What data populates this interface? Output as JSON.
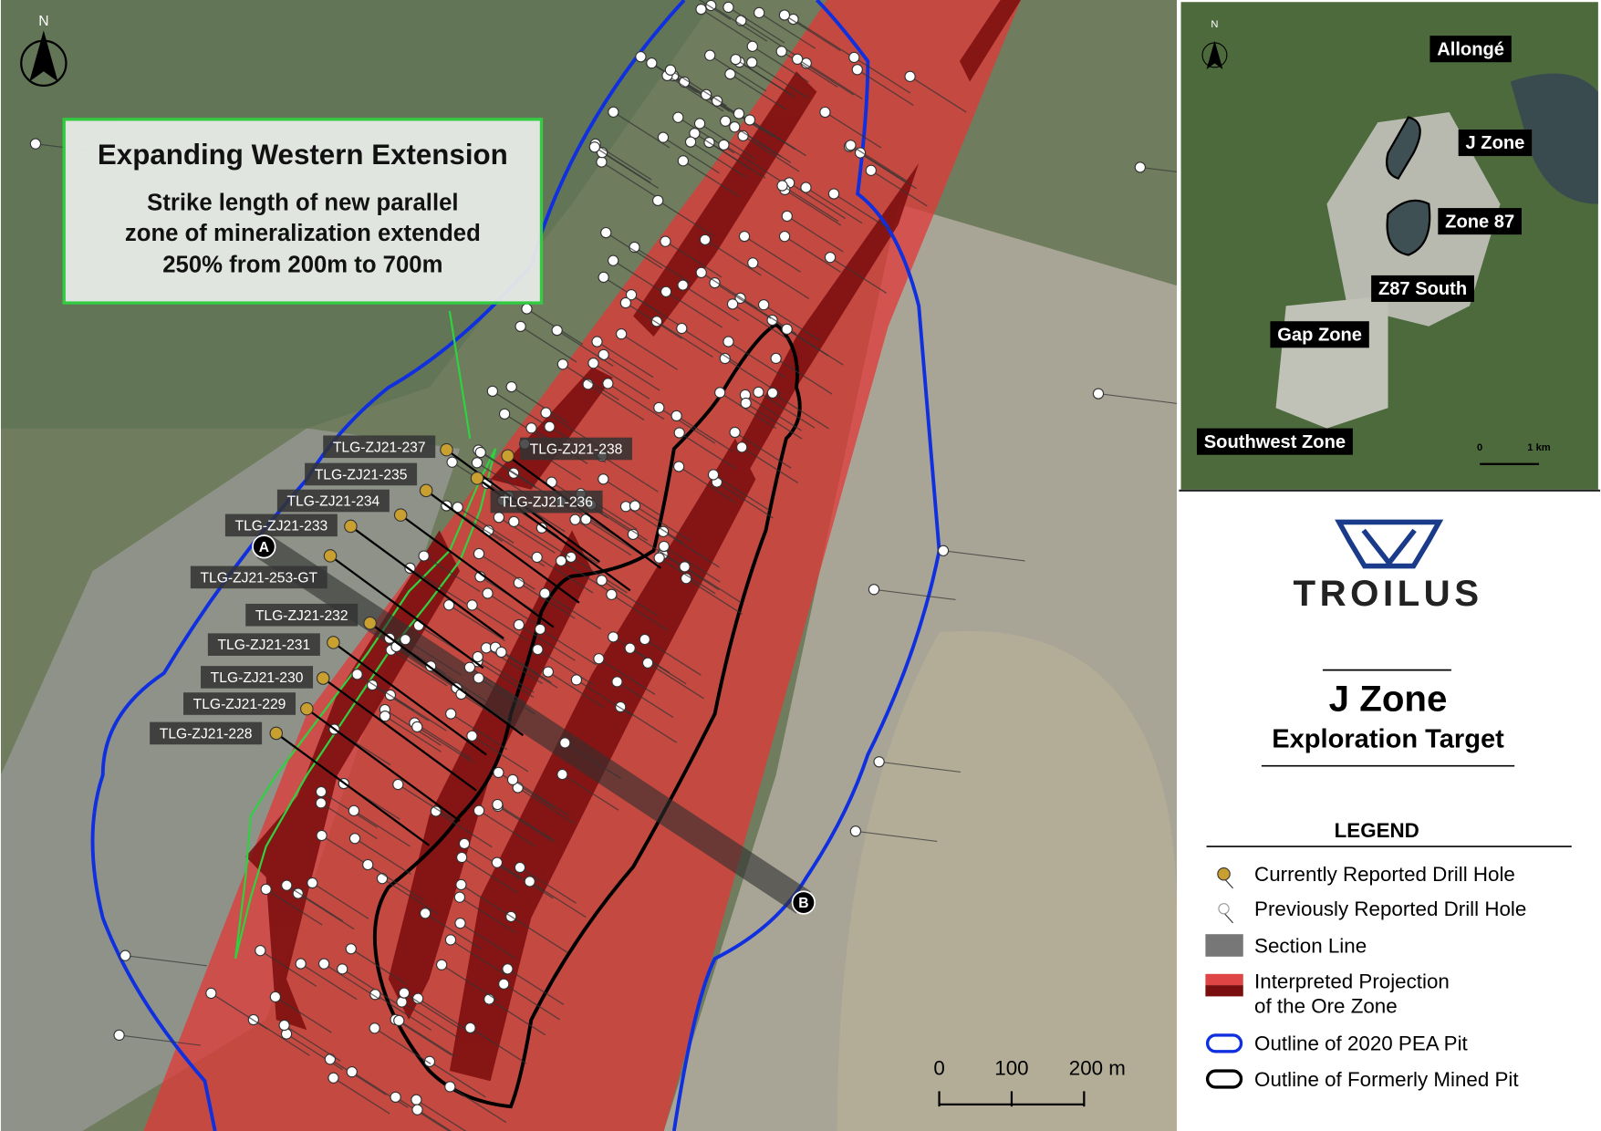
{
  "map": {
    "north_label": "N",
    "callout": {
      "title": "Expanding Western Extension",
      "lines": [
        "Strike length of new parallel",
        "zone of mineralization extended",
        "250% from 200m to 700m"
      ]
    },
    "drill_hole_labels": [
      "TLG-ZJ21-237",
      "TLG-ZJ21-238",
      "TLG-ZJ21-235",
      "TLG-ZJ21-236",
      "TLG-ZJ21-234",
      "TLG-ZJ21-233",
      "TLG-ZJ21-253-GT",
      "TLG-ZJ21-232",
      "TLG-ZJ21-231",
      "TLG-ZJ21-230",
      "TLG-ZJ21-229",
      "TLG-ZJ21-228"
    ],
    "section": {
      "start": "A",
      "end": "B"
    },
    "scale_bar": [
      "0",
      "100",
      "200 m"
    ]
  },
  "inset": {
    "north_label": "N",
    "zones": [
      "Allongé",
      "J Zone",
      "Zone 87",
      "Z87 South",
      "Gap Zone",
      "Southwest Zone"
    ],
    "scale": [
      "0",
      "1 km"
    ]
  },
  "panel": {
    "logo": "TROILUS",
    "title": "J Zone",
    "subtitle": "Exploration Target"
  },
  "legend": {
    "title": "LEGEND",
    "items": [
      {
        "lines": [
          "Currently Reported Drill Hole"
        ]
      },
      {
        "lines": [
          "Previously Reported Drill Hole"
        ]
      },
      {
        "lines": [
          "Section Line"
        ]
      },
      {
        "lines": [
          "Interpreted Projection",
          "of the Ore Zone"
        ]
      },
      {
        "lines": [
          "Outline of 2020 PEA Pit"
        ]
      },
      {
        "lines": [
          "Outline of Formerly Mined Pit"
        ]
      }
    ]
  }
}
